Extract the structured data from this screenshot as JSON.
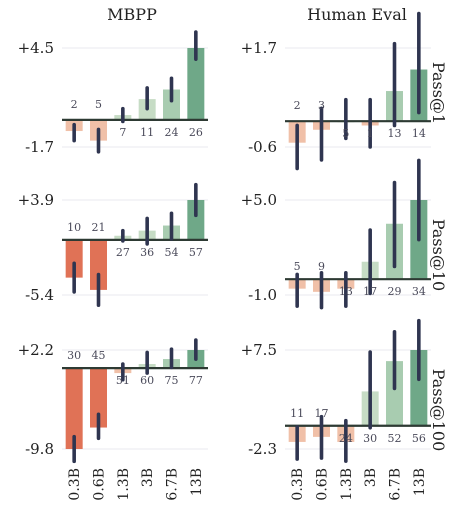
{
  "chart_data": {
    "type": "bar",
    "columns": [
      "MBPP",
      "Human Eval"
    ],
    "rows": [
      "Pass@1",
      "Pass@10",
      "Pass@100"
    ],
    "categories": [
      "0.3B",
      "0.6B",
      "1.3B",
      "3B",
      "6.7B",
      "13B"
    ],
    "panels": [
      {
        "column": "MBPP",
        "row": "Pass@1",
        "ylim": [
          -1.7,
          4.5
        ],
        "yticks": [
          "+4.5",
          "-1.7"
        ],
        "values": [
          -0.7,
          -1.3,
          0.3,
          1.3,
          1.9,
          4.5
        ],
        "err_low": [
          -1.3,
          -2.0,
          -0.1,
          0.7,
          1.2,
          3.8
        ],
        "err_high": [
          -0.3,
          -0.6,
          0.7,
          2.0,
          2.6,
          5.5
        ],
        "labels": [
          "2",
          "5",
          "7",
          "11",
          "24",
          "26"
        ]
      },
      {
        "column": "Human Eval",
        "row": "Pass@1",
        "ylim": [
          -0.6,
          1.7
        ],
        "yticks": [
          "+1.7",
          "-0.6"
        ],
        "values": [
          -0.5,
          -0.2,
          0.0,
          -0.1,
          0.7,
          1.2
        ],
        "err_low": [
          -1.1,
          -0.9,
          -0.4,
          -0.6,
          -0.1,
          0.2
        ],
        "err_high": [
          -0.1,
          0.3,
          0.5,
          0.5,
          1.8,
          2.5
        ],
        "labels": [
          "2",
          "3",
          "5",
          "1",
          "13",
          "14"
        ]
      },
      {
        "column": "MBPP",
        "row": "Pass@10",
        "ylim": [
          -5.4,
          3.9
        ],
        "yticks": [
          "+3.9",
          "-5.4"
        ],
        "values": [
          -3.7,
          -4.9,
          0.4,
          0.9,
          1.4,
          3.9
        ],
        "err_low": [
          -5.1,
          -6.4,
          -0.1,
          -0.4,
          0.1,
          2.4
        ],
        "err_high": [
          -2.3,
          -3.4,
          0.9,
          2.1,
          2.6,
          5.4
        ],
        "labels": [
          "10",
          "21",
          "27",
          "36",
          "54",
          "57"
        ]
      },
      {
        "column": "Human Eval",
        "row": "Pass@10",
        "ylim": [
          -1.0,
          5.0
        ],
        "yticks": [
          "+5.0",
          "-1.0"
        ],
        "values": [
          -0.6,
          -0.8,
          -0.6,
          1.1,
          3.5,
          5.0
        ],
        "err_low": [
          -1.7,
          -1.8,
          -1.7,
          -0.9,
          0.8,
          2.5
        ],
        "err_high": [
          0.3,
          0.4,
          0.4,
          3.1,
          6.1,
          7.5
        ],
        "labels": [
          "5",
          "9",
          "13",
          "17",
          "29",
          "34"
        ]
      },
      {
        "column": "MBPP",
        "row": "Pass@100",
        "ylim": [
          -9.8,
          2.2
        ],
        "yticks": [
          "+2.2",
          "-9.8"
        ],
        "values": [
          -9.8,
          -7.2,
          -0.6,
          0.5,
          1.1,
          2.2
        ],
        "err_low": [
          -11.3,
          -8.5,
          -1.4,
          -0.6,
          0.1,
          1.1
        ],
        "err_high": [
          -8.3,
          -5.6,
          0.5,
          1.9,
          2.3,
          3.4
        ],
        "labels": [
          "30",
          "45",
          "51",
          "60",
          "75",
          "77"
        ]
      },
      {
        "column": "Human Eval",
        "row": "Pass@100",
        "ylim": [
          -2.3,
          7.5
        ],
        "yticks": [
          "+7.5",
          "-2.3"
        ],
        "values": [
          -1.6,
          -1.1,
          -1.6,
          3.4,
          6.4,
          7.5
        ],
        "err_low": [
          -3.3,
          -3.2,
          -3.5,
          -0.2,
          3.7,
          4.6
        ],
        "err_high": [
          -0.1,
          0.9,
          0.5,
          7.3,
          9.3,
          10.4
        ],
        "labels": [
          "11",
          "17",
          "24",
          "30",
          "52",
          "56"
        ]
      }
    ],
    "colors": {
      "neg_strong": "#e07256",
      "neg_light": "#f0c0a8",
      "pos_light": "#c6dcc5",
      "pos_mid": "#a8ccb0",
      "pos_strong": "#6fa888"
    }
  }
}
